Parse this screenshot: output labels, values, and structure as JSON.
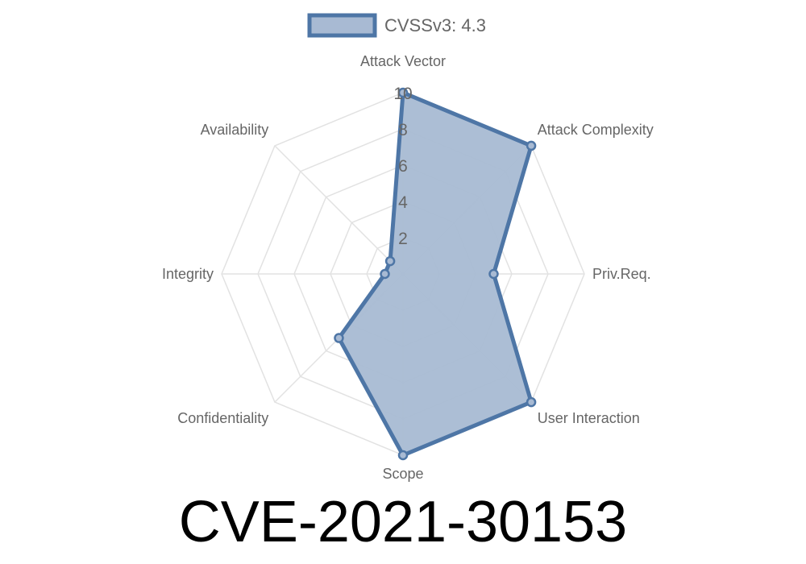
{
  "chart_data": {
    "type": "radar",
    "title": "CVE-2021-30153",
    "categories": [
      "Attack Vector",
      "Attack Complexity",
      "Priv.Req.",
      "User Interaction",
      "Scope",
      "Confidentiality",
      "Integrity",
      "Availability"
    ],
    "series": [
      {
        "name": "CVSSv3: 4.3",
        "values": [
          10,
          10,
          5,
          10,
          10,
          5,
          1,
          1
        ]
      }
    ],
    "rlim": [
      0,
      10
    ],
    "ticks": [
      "2",
      "4",
      "6",
      "8",
      "10"
    ],
    "grid": true,
    "legend": "top",
    "colors": {
      "line": "#4e76a6",
      "fill": "#a8bad3",
      "grid": "#e2e2e2"
    }
  }
}
